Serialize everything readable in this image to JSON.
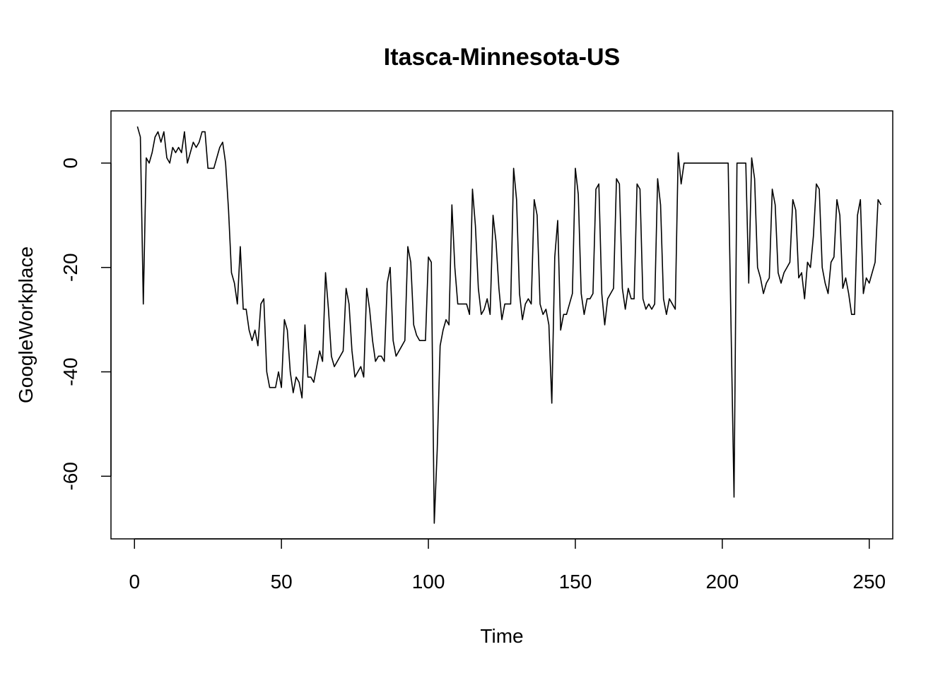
{
  "chart_data": {
    "type": "line",
    "title": "Itasca-Minnesota-US",
    "xlabel": "Time",
    "ylabel": "GoogleWorkplace",
    "xlim": [
      -8,
      258
    ],
    "ylim": [
      -72,
      10
    ],
    "xticks": [
      0,
      50,
      100,
      150,
      200,
      250
    ],
    "yticks": [
      -60,
      -40,
      -20,
      0
    ],
    "grid": false,
    "legend": "none",
    "line_color": "#000000",
    "series": [
      {
        "values": [
          7,
          5,
          -27,
          1,
          0,
          2,
          5,
          6,
          4,
          6,
          1,
          0,
          3,
          2,
          3,
          2,
          6,
          0,
          2,
          4,
          3,
          4,
          6,
          6,
          -1,
          -1,
          -1,
          1,
          3,
          4,
          0,
          -9,
          -21,
          -23,
          -27,
          -16,
          -28,
          -28,
          -32,
          -34,
          -32,
          -35,
          -27,
          -26,
          -40,
          -43,
          -43,
          -43,
          -40,
          -43,
          -30,
          -32,
          -40,
          -44,
          -41,
          -42,
          -45,
          -31,
          -41,
          -41,
          -42,
          -39,
          -36,
          -38,
          -21,
          -28,
          -37,
          -39,
          -38,
          -37,
          -36,
          -24,
          -27,
          -36,
          -41,
          -40,
          -39,
          -41,
          -24,
          -28,
          -34,
          -38,
          -37,
          -37,
          -38,
          -23,
          -20,
          -34,
          -37,
          -36,
          -35,
          -34,
          -16,
          -19,
          -31,
          -33,
          -34,
          -34,
          -34,
          -18,
          -19,
          -69,
          -55,
          -35,
          -32,
          -30,
          -31,
          -8,
          -20,
          -27,
          -27,
          -27,
          -27,
          -29,
          -5,
          -12,
          -24,
          -29,
          -28,
          -26,
          -29,
          -10,
          -15,
          -24,
          -30,
          -27,
          -27,
          -27,
          -1,
          -7,
          -25,
          -30,
          -27,
          -26,
          -27,
          -7,
          -10,
          -27,
          -29,
          -28,
          -31,
          -46,
          -18,
          -11,
          -32,
          -29,
          -29,
          -27,
          -25,
          -1,
          -6,
          -25,
          -29,
          -26,
          -26,
          -25,
          -5,
          -4,
          -25,
          -31,
          -26,
          -25,
          -24,
          -3,
          -4,
          -24,
          -28,
          -24,
          -26,
          -26,
          -4,
          -5,
          -26,
          -28,
          -27,
          -28,
          -27,
          -3,
          -8,
          -26,
          -29,
          -26,
          -27,
          -28,
          2,
          -4,
          0,
          0,
          0,
          0,
          0,
          0,
          0,
          0,
          0,
          0,
          0,
          0,
          0,
          0,
          0,
          0,
          -32,
          -64,
          0,
          0,
          0,
          0,
          -23,
          1,
          -3,
          -20,
          -22,
          -25,
          -23,
          -22,
          -5,
          -8,
          -21,
          -23,
          -21,
          -20,
          -19,
          -7,
          -9,
          -22,
          -21,
          -26,
          -19,
          -20,
          -14,
          -4,
          -5,
          -20,
          -23,
          -25,
          -19,
          -18,
          -7,
          -10,
          -24,
          -22,
          -25,
          -29,
          -29,
          -10,
          -7,
          -25,
          -22,
          -23,
          -21,
          -19,
          -7,
          -8
        ]
      }
    ]
  }
}
